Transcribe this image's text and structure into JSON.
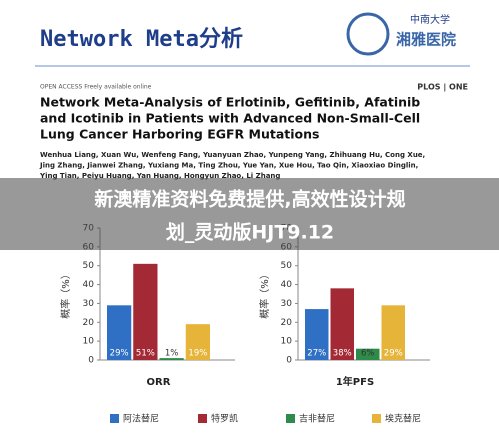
{
  "header": {
    "title": "Network Meta分析",
    "logo_top": "中南大学",
    "logo_bottom": "湘雅医院"
  },
  "paper": {
    "access": "OPEN ACCESS Freely available online",
    "journal": "PLOS | ONE",
    "title_lines": [
      "Network Meta-Analysis of Erlotinib, Gefitinib, Afatinib",
      "and Icotinib in Patients with Advanced Non-Small-Cell",
      "Lung Cancer Harboring EGFR Mutations"
    ],
    "author_lines": [
      "Wenhua Liang, Xuan Wu, Wenfeng Fang, Yuanyuan Zhao, Yunpeng Yang, Zhihuang Hu, Cong Xue,",
      "Jing Zhang, Jianwei Zhang, Yuxiang Ma, Ting Zhou, Yue Yan, Xue Hou, Tao Qin, Xiaoxiao Dinglin,",
      "Ying Tian, Peiyu Huang, Yan Huang, Hongyun Zhao, Li Zhang"
    ]
  },
  "overlay": {
    "lines": [
      "新澳精准资料免费提供,高效性设计规",
      "划_灵动版HJT9.12"
    ]
  },
  "chart_data": [
    {
      "type": "bar",
      "y_label": "概率（%）",
      "categories": [
        "ORR"
      ],
      "ylim": [
        0,
        70
      ],
      "yticks": [
        0,
        10,
        20,
        30,
        40,
        50,
        60,
        70
      ],
      "series": [
        {
          "name": "阿法替尼",
          "color": "#2f6fc4",
          "values": [
            29
          ],
          "value_labels": [
            "29%"
          ]
        },
        {
          "name": "特罗凯",
          "color": "#a32a35",
          "values": [
            51
          ],
          "value_labels": [
            "51%"
          ]
        },
        {
          "name": "吉非替尼",
          "color": "#2e8b4a",
          "values": [
            1
          ],
          "value_labels": [
            "1%"
          ]
        },
        {
          "name": "埃克替尼",
          "color": "#e7b43a",
          "values": [
            19
          ],
          "value_labels": [
            "19%"
          ]
        }
      ]
    },
    {
      "type": "bar",
      "y_label": "概率（%）",
      "categories": [
        "1年PFS"
      ],
      "ylim": [
        0,
        70
      ],
      "yticks": [
        0,
        10,
        20,
        30,
        40,
        50,
        60,
        70
      ],
      "series": [
        {
          "color": "#2f6fc4",
          "values": [
            27
          ],
          "value_labels": [
            "27%"
          ]
        },
        {
          "color": "#a32a35",
          "values": [
            38
          ],
          "value_labels": [
            "38%"
          ]
        },
        {
          "color": "#2e8b4a",
          "values": [
            6
          ],
          "value_labels": [
            "6%"
          ]
        },
        {
          "color": "#e7b43a",
          "values": [
            29
          ],
          "value_labels": [
            "29%"
          ]
        }
      ]
    }
  ]
}
